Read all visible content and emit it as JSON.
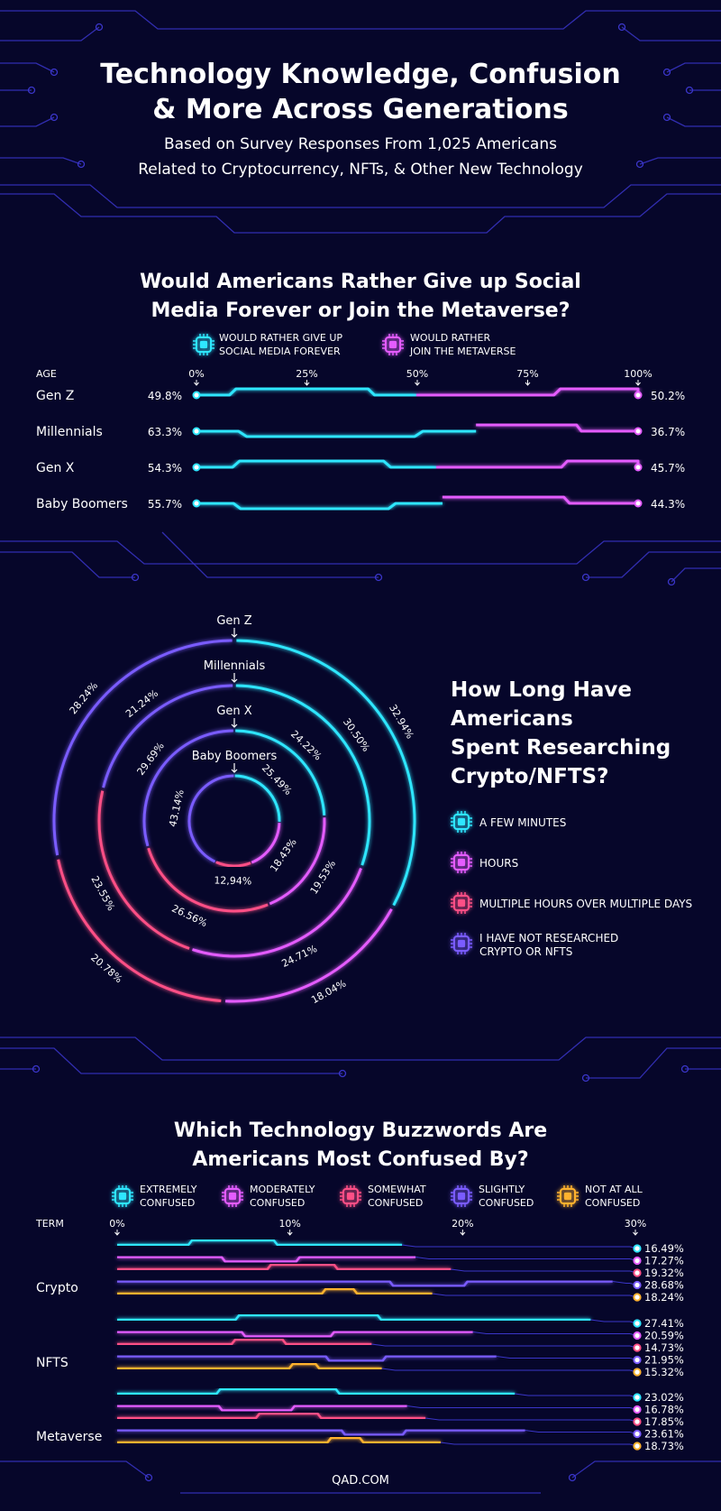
{
  "header": {
    "title_line1": "Technology Knowledge, Confusion",
    "title_line2": "& More Across Generations",
    "subtitle_line1": "Based on Survey Responses From 1,025 Americans",
    "subtitle_line2": "Related to Cryptocurrency, NFTs, & Other New Technology"
  },
  "footer": {
    "source": "QAD.COM"
  },
  "colors": {
    "background": "#06062a",
    "cyan": "#2ee6ff",
    "magenta": "#e45cff",
    "pink": "#ff4f86",
    "violet": "#7a5cff",
    "orange": "#ffb22e",
    "circuit": "#3a35c8"
  },
  "icons": [
    "chip-icon",
    "circuit-trace-decoration"
  ],
  "chart_data": [
    {
      "type": "bar",
      "title_line1": "Would Americans Rather Give up Social",
      "title_line2": "Media Forever or Join the Metaverse?",
      "category_header": "AGE",
      "x_ticks": [
        "0%",
        "25%",
        "50%",
        "75%",
        "100%"
      ],
      "xlim": [
        0,
        100
      ],
      "legend": [
        {
          "line1": "WOULD RATHER GIVE UP",
          "line2": "SOCIAL MEDIA FOREVER",
          "color": "#2ee6ff"
        },
        {
          "line1": "WOULD RATHER",
          "line2": "JOIN THE METAVERSE",
          "color": "#e45cff"
        }
      ],
      "categories": [
        "Gen Z",
        "Millennials",
        "Gen X",
        "Baby Boomers"
      ],
      "series": [
        {
          "values": [
            49.8,
            63.3,
            54.3,
            55.7
          ],
          "labels": [
            "49.8%",
            "63.3%",
            "54.3%",
            "55.7%"
          ]
        },
        {
          "values": [
            50.2,
            36.7,
            45.7,
            44.3
          ],
          "labels": [
            "50.2%",
            "36.7%",
            "45.7%",
            "44.3%"
          ]
        }
      ]
    },
    {
      "type": "pie",
      "title_lines": [
        "How Long Have",
        "Americans",
        "Spent Researching",
        "Crypto/NFTS?"
      ],
      "legend": [
        {
          "line1": "A FEW MINUTES",
          "line2": "",
          "color": "#2ee6ff"
        },
        {
          "line1": "HOURS",
          "line2": "",
          "color": "#e45cff"
        },
        {
          "line1": "MULTIPLE HOURS OVER MULTIPLE DAYS",
          "line2": "",
          "color": "#ff4f86"
        },
        {
          "line1": "I HAVE NOT RESEARCHED",
          "line2": "CRYPTO OR NFTS",
          "color": "#7a5cff"
        }
      ],
      "rings": [
        {
          "name": "Gen Z",
          "values": [
            32.94,
            18.04,
            20.78,
            28.24
          ],
          "labels": [
            "32.94%",
            "18.04%",
            "20.78%",
            "28.24%"
          ]
        },
        {
          "name": "Millennials",
          "values": [
            30.5,
            24.71,
            23.55,
            21.24
          ],
          "labels": [
            "30.50%",
            "24.71%",
            "23.55%",
            "21.24%"
          ]
        },
        {
          "name": "Gen X",
          "values": [
            24.22,
            19.53,
            26.56,
            29.69
          ],
          "labels": [
            "24.22%",
            "19.53%",
            "26.56%",
            "29.69%"
          ]
        },
        {
          "name": "Baby Boomers",
          "values": [
            25.49,
            18.43,
            12.94,
            43.14
          ],
          "labels": [
            "25.49%",
            "18.43%",
            "12,94%",
            "43.14%"
          ]
        }
      ]
    },
    {
      "type": "bar",
      "title_line1": "Which Technology Buzzwords Are",
      "title_line2": "Americans Most Confused By?",
      "category_header": "TERM",
      "x_ticks": [
        "0%",
        "10%",
        "20%",
        "30%"
      ],
      "xlim": [
        0,
        30
      ],
      "legend": [
        {
          "line1": "EXTREMELY",
          "line2": "CONFUSED",
          "color": "#2ee6ff"
        },
        {
          "line1": "MODERATELY",
          "line2": "CONFUSED",
          "color": "#e45cff"
        },
        {
          "line1": "SOMEWHAT",
          "line2": "CONFUSED",
          "color": "#ff4f86"
        },
        {
          "line1": "SLIGHTLY",
          "line2": "CONFUSED",
          "color": "#7a5cff"
        },
        {
          "line1": "NOT AT ALL",
          "line2": "CONFUSED",
          "color": "#ffb22e"
        }
      ],
      "categories": [
        "Crypto",
        "NFTS",
        "Metaverse"
      ],
      "series": [
        {
          "values": [
            16.49,
            27.41,
            23.02
          ],
          "labels": [
            "16.49%",
            "27.41%",
            "23.02%"
          ]
        },
        {
          "values": [
            17.27,
            20.59,
            16.78
          ],
          "labels": [
            "17.27%",
            "20.59%",
            "16.78%"
          ]
        },
        {
          "values": [
            19.32,
            14.73,
            17.85
          ],
          "labels": [
            "19.32%",
            "14.73%",
            "17.85%"
          ]
        },
        {
          "values": [
            28.68,
            21.95,
            23.61
          ],
          "labels": [
            "28.68%",
            "21.95%",
            "23.61%"
          ]
        },
        {
          "values": [
            18.24,
            15.32,
            18.73
          ],
          "labels": [
            "18.24%",
            "15.32%",
            "18.73%"
          ]
        }
      ]
    }
  ]
}
